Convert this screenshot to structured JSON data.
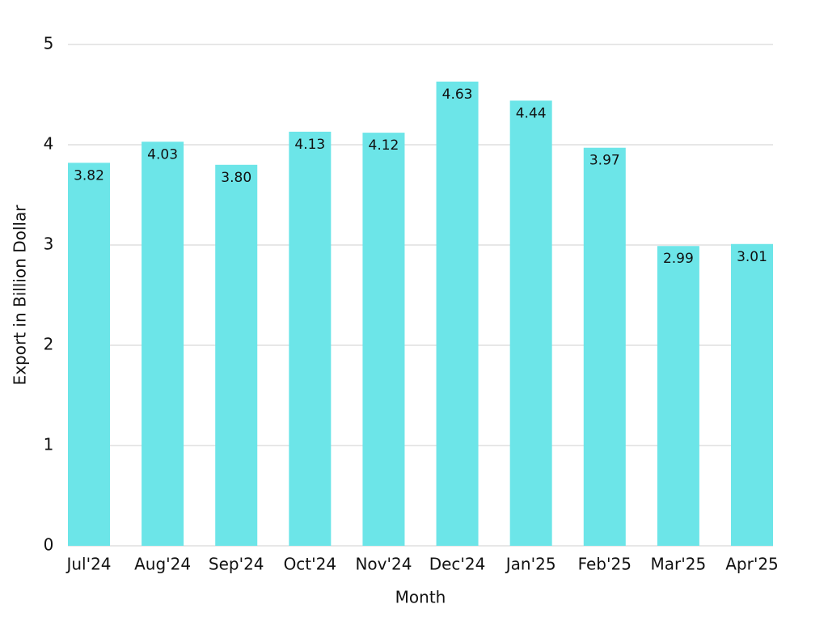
{
  "chart_data": {
    "type": "bar",
    "x_label": "Month",
    "y_label": "Export in Billion Dollar",
    "categories": [
      "Jul'24",
      "Aug'24",
      "Sep'24",
      "Oct'24",
      "Nov'24",
      "Dec'24",
      "Jan'25",
      "Feb'25",
      "Mar'25",
      "Apr'25"
    ],
    "values": [
      3.82,
      4.03,
      3.8,
      4.13,
      4.12,
      4.63,
      4.44,
      3.97,
      2.99,
      3.01
    ],
    "value_labels": [
      "3.82",
      "4.03",
      "3.80",
      "4.13",
      "4.12",
      "4.63",
      "4.44",
      "3.97",
      "2.99",
      "3.01"
    ],
    "color": "#6ce5e8",
    "ylim": [
      0,
      5
    ],
    "yticks": [
      0,
      1,
      2,
      3,
      4,
      5
    ],
    "grid": true
  }
}
